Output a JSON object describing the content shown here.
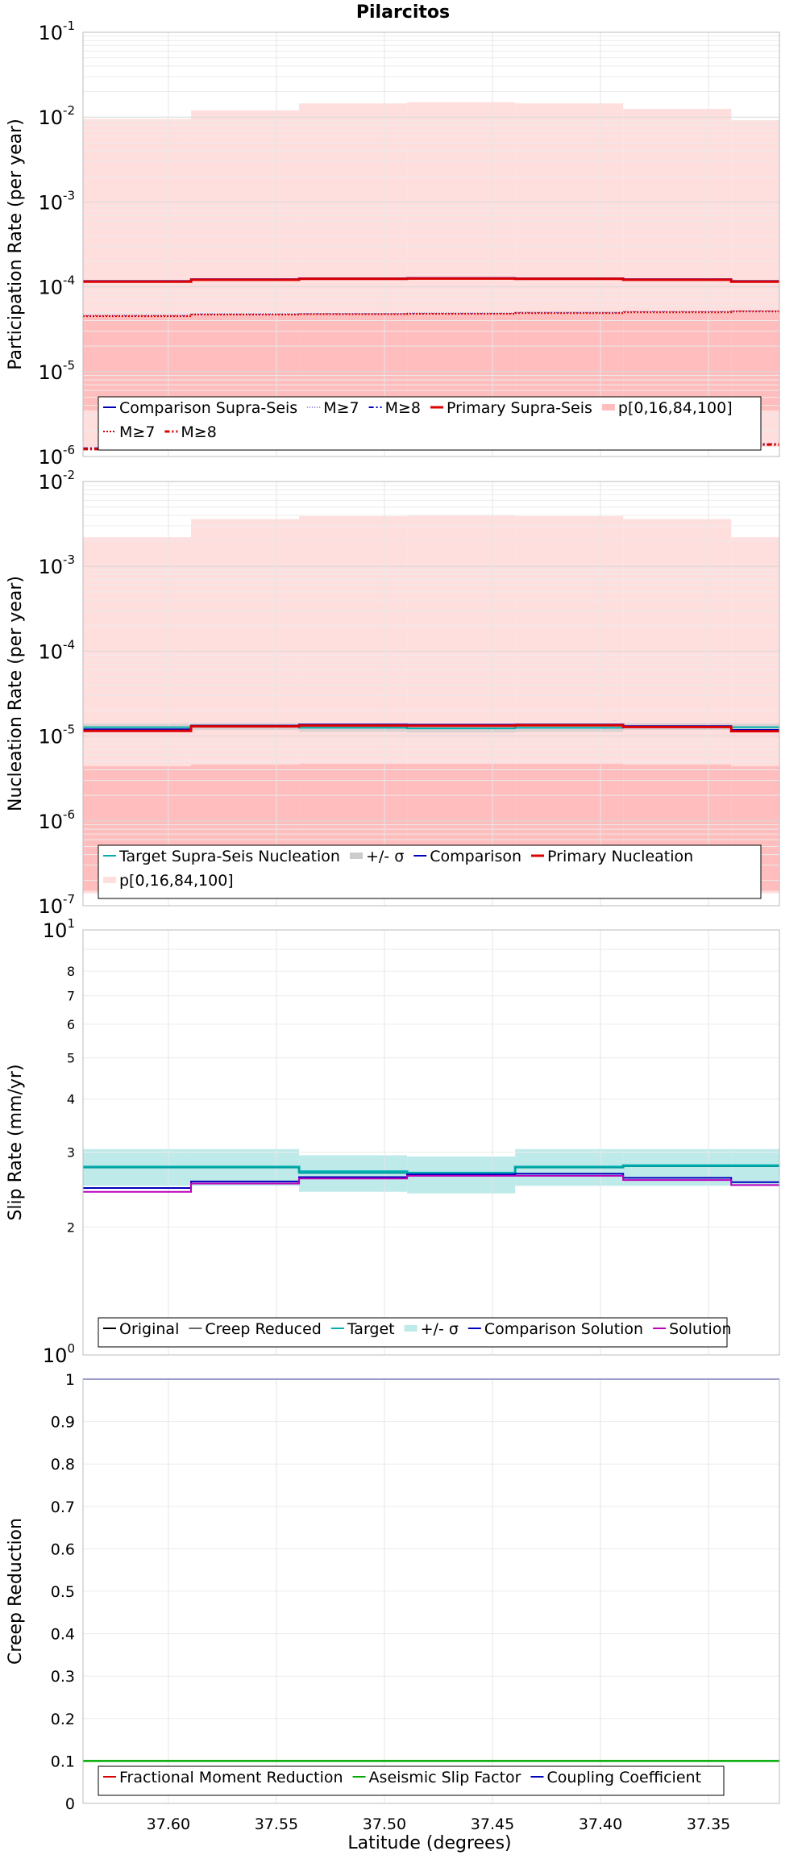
{
  "title": "Pilarcitos",
  "xlabel": "Latitude (degrees)",
  "colors": {
    "band_outer": "#ffdede",
    "band_inner": "#ffbdbd",
    "primary": "#dd0000",
    "comparison": "#0000bb",
    "target": "#00b0b0",
    "target_band": "#bfeaea",
    "gray": "#cccccc",
    "magenta": "#bb00bb",
    "green": "#00aa00",
    "grid": "#e6e6e6"
  },
  "chart_data": [
    {
      "type": "line",
      "id": "participation",
      "ylabel": "Participation Rate (per year)",
      "yscale": "log",
      "ylim": [
        1e-06,
        0.1
      ],
      "xlim": [
        37.6395,
        37.3172
      ],
      "x_ticks": [
        37.6,
        37.55,
        37.5,
        37.45,
        37.4,
        37.35
      ],
      "x_ticklabels": [
        "37.60",
        "37.55",
        "37.50",
        "37.45",
        "37.40",
        "37.35"
      ],
      "y_ticks": [
        {
          "base": "10",
          "exp": "-6"
        },
        {
          "base": "10",
          "exp": "-5"
        },
        {
          "base": "10",
          "exp": "-4"
        },
        {
          "base": "10",
          "exp": "-3"
        },
        {
          "base": "10",
          "exp": "-2"
        },
        {
          "base": "10",
          "exp": "-1"
        }
      ],
      "section_edges": [
        37.6395,
        37.5895,
        37.5395,
        37.4895,
        37.4395,
        37.3895,
        37.3395,
        37.3172
      ],
      "bands": [
        {
          "name": "p[0,16,84,100]",
          "outer_low": [
            1.2e-06,
            1.2e-06,
            1.25e-06,
            1.25e-06,
            1.3e-06,
            1.3e-06,
            1.3e-06
          ],
          "outer_high": [
            0.0095,
            0.012,
            0.0145,
            0.015,
            0.0145,
            0.0125,
            0.0092
          ],
          "inner_low": [
            3.5e-06,
            3.6e-06,
            3.8e-06,
            3.8e-06,
            3.8e-06,
            3.7e-06,
            3.5e-06
          ],
          "inner_high": [
            4.7e-05,
            4.8e-05,
            4.9e-05,
            5e-05,
            5.1e-05,
            5.2e-05,
            5.3e-05
          ]
        }
      ],
      "series": [
        {
          "name": "Comparison Supra-Seis",
          "values": [
            0.000117,
            0.000123,
            0.000126,
            0.000127,
            0.000126,
            0.000123,
            0.000117
          ],
          "color": "#0000bb",
          "width": 2,
          "dash": ""
        },
        {
          "name": "Primary Supra-Seis",
          "values": [
            0.000115,
            0.000121,
            0.000124,
            0.000125,
            0.000124,
            0.000121,
            0.000115
          ],
          "color": "#dd0000",
          "width": 3,
          "dash": ""
        },
        {
          "name": "M≥7",
          "values": [
            4.6e-05,
            4.8e-05,
            4.85e-05,
            4.9e-05,
            5e-05,
            5.1e-05,
            5.2e-05
          ],
          "color": "#0000bb",
          "width": 1,
          "dash": "1,2"
        },
        {
          "name": "M≥7",
          "values": [
            4.5e-05,
            4.7e-05,
            4.75e-05,
            4.8e-05,
            4.9e-05,
            5e-05,
            5.1e-05
          ],
          "color": "#dd0000",
          "width": 2,
          "dash": "2,2"
        },
        {
          "name": "M≥8",
          "values": [
            1.25e-06,
            1.28e-06,
            1.3e-06,
            1.32e-06,
            1.35e-06,
            1.38e-06,
            1.4e-06
          ],
          "color": "#0000bb",
          "width": 2,
          "dash": "6,3,2,3"
        },
        {
          "name": "M≥8",
          "values": [
            1.22e-06,
            1.25e-06,
            1.27e-06,
            1.3e-06,
            1.33e-06,
            1.36e-06,
            1.38e-06
          ],
          "color": "#dd0000",
          "width": 3,
          "dash": "6,3,2,3"
        }
      ],
      "legend": {
        "rows": [
          [
            {
              "label": "Comparison Supra-Seis",
              "color": "#0000bb",
              "width": 2,
              "dash": ""
            },
            {
              "label": "M≥7",
              "color": "#0000bb",
              "width": 1,
              "dash": "1,2"
            },
            {
              "label": "M≥8",
              "color": "#0000bb",
              "width": 2,
              "dash": "6,3,2,3"
            },
            {
              "label": "Primary Supra-Seis",
              "color": "#dd0000",
              "width": 3,
              "dash": ""
            },
            {
              "label": "p[0,16,84,100]",
              "color": "#ffbdbd",
              "width": 8,
              "dash": ""
            }
          ],
          [
            {
              "label": "M≥7",
              "color": "#dd0000",
              "width": 2,
              "dash": "2,2"
            },
            {
              "label": "M≥8",
              "color": "#dd0000",
              "width": 3,
              "dash": "6,3,2,3"
            }
          ]
        ]
      }
    },
    {
      "type": "line",
      "id": "nucleation",
      "ylabel": "Nucleation Rate (per year)",
      "yscale": "log",
      "ylim": [
        1e-07,
        0.01
      ],
      "xlim": [
        37.6395,
        37.3172
      ],
      "x_ticks": [
        37.6,
        37.55,
        37.5,
        37.45,
        37.4,
        37.35
      ],
      "y_ticks": [
        {
          "base": "10",
          "exp": "-7"
        },
        {
          "base": "10",
          "exp": "-6"
        },
        {
          "base": "10",
          "exp": "-5"
        },
        {
          "base": "10",
          "exp": "-4"
        },
        {
          "base": "10",
          "exp": "-3"
        },
        {
          "base": "10",
          "exp": "-2"
        }
      ],
      "section_edges": [
        37.6395,
        37.5895,
        37.5395,
        37.4895,
        37.4395,
        37.3895,
        37.3395,
        37.3172
      ],
      "bands": [
        {
          "name": "p[0,16,84,100]",
          "outer_low": [
            1.4e-07,
            1.45e-07,
            1.5e-07,
            1.5e-07,
            1.5e-07,
            1.45e-07,
            1.4e-07
          ],
          "outer_high": [
            0.0022,
            0.0036,
            0.0039,
            0.004,
            0.0039,
            0.0036,
            0.0022
          ],
          "inner_low": [
            1.5e-07,
            1.55e-07,
            1.6e-07,
            1.6e-07,
            1.6e-07,
            1.55e-07,
            1.5e-07
          ],
          "inner_high": [
            4.4e-06,
            4.6e-06,
            4.7e-06,
            4.7e-06,
            4.7e-06,
            4.6e-06,
            4.4e-06
          ]
        },
        {
          "name": "+/- σ",
          "outer_low": [
            1.15e-05,
            1.18e-05,
            1.12e-05,
            1.1e-05,
            1.12e-05,
            1.18e-05,
            1.15e-05
          ],
          "outer_high": [
            1.4e-05,
            1.42e-05,
            1.38e-05,
            1.36e-05,
            1.38e-05,
            1.42e-05,
            1.4e-05
          ]
        }
      ],
      "series": [
        {
          "name": "Target Supra-Seis Nucleation",
          "values": [
            1.27e-05,
            1.29e-05,
            1.25e-05,
            1.23e-05,
            1.25e-05,
            1.29e-05,
            1.27e-05
          ],
          "color": "#00b0b0",
          "width": 2,
          "dash": ""
        },
        {
          "name": "Comparison",
          "values": [
            1.2e-05,
            1.33e-05,
            1.37e-05,
            1.36e-05,
            1.37e-05,
            1.31e-05,
            1.18e-05
          ],
          "color": "#0000bb",
          "width": 2,
          "dash": ""
        },
        {
          "name": "Primary Nucleation",
          "values": [
            1.15e-05,
            1.3e-05,
            1.33e-05,
            1.32e-05,
            1.34e-05,
            1.28e-05,
            1.14e-05
          ],
          "color": "#dd0000",
          "width": 3,
          "dash": ""
        }
      ],
      "legend": {
        "rows": [
          [
            {
              "label": "Target Supra-Seis Nucleation",
              "color": "#00b0b0",
              "width": 2,
              "dash": ""
            },
            {
              "label": "+/- σ",
              "color": "#cccccc",
              "width": 8,
              "dash": ""
            },
            {
              "label": "Comparison",
              "color": "#0000bb",
              "width": 2,
              "dash": ""
            },
            {
              "label": "Primary Nucleation",
              "color": "#dd0000",
              "width": 3,
              "dash": ""
            }
          ],
          [
            {
              "label": "p[0,16,84,100]",
              "color": "#ffdede",
              "width": 8,
              "dash": ""
            }
          ]
        ]
      }
    },
    {
      "type": "line",
      "id": "slip",
      "ylabel": "Slip Rate (mm/yr)",
      "yscale": "log",
      "ylim": [
        1,
        10
      ],
      "xlim": [
        37.6395,
        37.3172
      ],
      "x_ticks": [
        37.6,
        37.55,
        37.5,
        37.45,
        37.4,
        37.35
      ],
      "y_ticks": [
        {
          "base": "10",
          "exp": "0",
          "v": 1
        },
        {
          "base": "10",
          "exp": "1",
          "v": 10
        }
      ],
      "y_minor_ticks": [
        2,
        3,
        4,
        5,
        6,
        7,
        8
      ],
      "section_edges": [
        37.6395,
        37.5895,
        37.5395,
        37.4895,
        37.4395,
        37.3895,
        37.3395,
        37.3172
      ],
      "bands": [
        {
          "name": "+/- σ",
          "outer_low": [
            2.5,
            2.5,
            2.42,
            2.4,
            2.5,
            2.5,
            2.5
          ],
          "outer_high": [
            3.05,
            3.05,
            2.95,
            2.93,
            3.05,
            3.05,
            3.05
          ]
        }
      ],
      "series": [
        {
          "name": "Original",
          "values": [
            2.77,
            2.77,
            2.7,
            2.68,
            2.77,
            2.79,
            2.79
          ],
          "color": "#00b0b0",
          "width": 3,
          "dash": ""
        },
        {
          "name": "Target",
          "values": [
            2.76,
            2.76,
            2.68,
            2.66,
            2.76,
            2.78,
            2.78
          ],
          "color": "#00a0a0",
          "width": 2,
          "dash": ""
        },
        {
          "name": "Comparison Solution",
          "values": [
            2.47,
            2.56,
            2.62,
            2.66,
            2.67,
            2.61,
            2.55
          ],
          "color": "#0000bb",
          "width": 2,
          "dash": ""
        },
        {
          "name": "Solution",
          "values": [
            2.42,
            2.53,
            2.6,
            2.64,
            2.64,
            2.58,
            2.51
          ],
          "color": "#bb00bb",
          "width": 2,
          "dash": ""
        }
      ],
      "legend": {
        "rows": [
          [
            {
              "label": "Original",
              "color": "#000000",
              "width": 2,
              "dash": ""
            },
            {
              "label": "Creep Reduced",
              "color": "#666666",
              "width": 2,
              "dash": ""
            },
            {
              "label": "Target",
              "color": "#00b0b0",
              "width": 2,
              "dash": ""
            },
            {
              "label": "+/- σ",
              "color": "#bfeaea",
              "width": 8,
              "dash": ""
            },
            {
              "label": "Comparison Solution",
              "color": "#0000bb",
              "width": 2,
              "dash": ""
            },
            {
              "label": "Solution",
              "color": "#bb00bb",
              "width": 2,
              "dash": ""
            }
          ]
        ]
      }
    },
    {
      "type": "line",
      "id": "creep",
      "ylabel": "Creep Reduction",
      "yscale": "linear",
      "ylim": [
        0,
        1
      ],
      "xlim": [
        37.6395,
        37.3172
      ],
      "x_ticks": [
        37.6,
        37.55,
        37.5,
        37.45,
        37.4,
        37.35
      ],
      "y_ticklabels": [
        "0",
        "0.1",
        "0.2",
        "0.3",
        "0.4",
        "0.5",
        "0.6",
        "0.7",
        "0.8",
        "0.9",
        "1"
      ],
      "series": [
        {
          "name": "Coupling Coefficient",
          "values": [
            1,
            1
          ],
          "color": "#0000bb",
          "width": 1.5,
          "dash": ""
        },
        {
          "name": "Aseismic Slip Factor",
          "values": [
            0.1,
            0.1
          ],
          "color": "#00aa00",
          "width": 2.5,
          "dash": ""
        }
      ],
      "legend": {
        "rows": [
          [
            {
              "label": "Fractional Moment Reduction",
              "color": "#dd0000",
              "width": 2,
              "dash": ""
            },
            {
              "label": "Aseismic Slip Factor",
              "color": "#00aa00",
              "width": 2,
              "dash": ""
            },
            {
              "label": "Coupling Coefficient",
              "color": "#0000bb",
              "width": 2,
              "dash": ""
            }
          ]
        ]
      }
    }
  ]
}
